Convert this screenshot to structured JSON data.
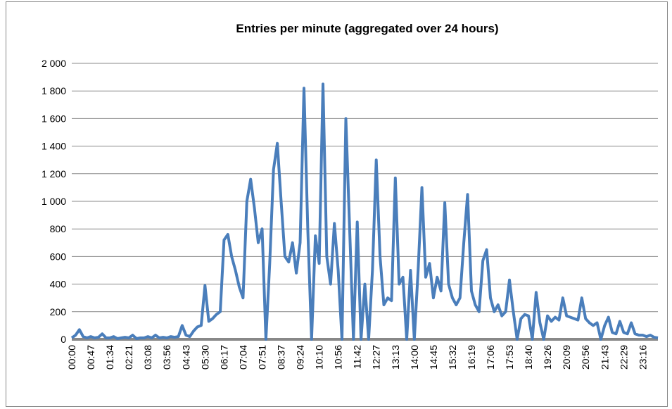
{
  "chart_data": {
    "type": "line",
    "title": "Entries per minute (aggregated over 24 hours)",
    "categories": [
      "00:00",
      null,
      null,
      null,
      null,
      "00:47",
      null,
      null,
      null,
      null,
      "01:34",
      null,
      null,
      null,
      null,
      "02:21",
      null,
      null,
      null,
      null,
      "03:08",
      null,
      null,
      null,
      null,
      "03:56",
      null,
      null,
      null,
      null,
      "04:43",
      null,
      null,
      null,
      null,
      "05:30",
      null,
      null,
      null,
      null,
      "06:17",
      null,
      null,
      null,
      null,
      "07:04",
      null,
      null,
      null,
      null,
      "07:51",
      null,
      null,
      null,
      null,
      "08:37",
      null,
      null,
      null,
      null,
      "09:24",
      null,
      null,
      null,
      null,
      "10:10",
      null,
      null,
      null,
      null,
      "10:56",
      null,
      null,
      null,
      null,
      "11:42",
      null,
      null,
      null,
      null,
      "12:27",
      null,
      null,
      null,
      null,
      "13:13",
      null,
      null,
      null,
      null,
      "14:00",
      null,
      null,
      null,
      null,
      "14:45",
      null,
      null,
      null,
      null,
      "15:32",
      null,
      null,
      null,
      null,
      "16:19",
      null,
      null,
      null,
      null,
      "17:06",
      null,
      null,
      null,
      null,
      "17:53",
      null,
      null,
      null,
      null,
      "18:40",
      null,
      null,
      null,
      null,
      "19:26",
      null,
      null,
      null,
      null,
      "20:09",
      null,
      null,
      null,
      null,
      "20:56",
      null,
      null,
      null,
      null,
      "21:43",
      null,
      null,
      null,
      null,
      "22:29",
      null,
      null,
      null,
      null,
      "23:16",
      null,
      null,
      null,
      null
    ],
    "series": [
      {
        "name": "Entries",
        "color": "#4a7ebb",
        "values": [
          10,
          30,
          70,
          20,
          10,
          20,
          10,
          15,
          40,
          10,
          10,
          20,
          5,
          10,
          15,
          10,
          30,
          5,
          10,
          10,
          20,
          10,
          30,
          10,
          15,
          10,
          20,
          15,
          20,
          100,
          30,
          20,
          60,
          90,
          100,
          390,
          130,
          150,
          180,
          200,
          720,
          760,
          600,
          500,
          380,
          300,
          1000,
          1160,
          950,
          700,
          800,
          0,
          550,
          1230,
          1420,
          1000,
          600,
          560,
          700,
          480,
          700,
          1820,
          800,
          0,
          750,
          550,
          1850,
          600,
          400,
          840,
          500,
          0,
          1600,
          800,
          0,
          850,
          0,
          400,
          0,
          500,
          1300,
          600,
          250,
          300,
          280,
          1170,
          400,
          450,
          0,
          500,
          0,
          500,
          1100,
          450,
          550,
          300,
          450,
          350,
          990,
          400,
          300,
          250,
          300,
          700,
          1050,
          350,
          250,
          200,
          570,
          650,
          300,
          200,
          250,
          170,
          200,
          430,
          200,
          0,
          150,
          180,
          170,
          0,
          340,
          120,
          0,
          170,
          130,
          160,
          140,
          300,
          170,
          160,
          150,
          140,
          300,
          150,
          120,
          100,
          120,
          0,
          100,
          160,
          50,
          40,
          130,
          50,
          40,
          120,
          40,
          30,
          30,
          20,
          30,
          15,
          10
        ]
      }
    ],
    "ylim": [
      0,
      2000
    ],
    "yticks": [
      0,
      200,
      400,
      600,
      800,
      {
        "value": 1000,
        "label": "1 000"
      },
      {
        "value": 1200,
        "label": "1 200"
      },
      {
        "value": 1400,
        "label": "1 400"
      },
      {
        "value": 1600,
        "label": "1 600"
      },
      {
        "value": 1800,
        "label": "1 800"
      },
      {
        "value": 2000,
        "label": "2 000"
      }
    ],
    "grid": true
  }
}
